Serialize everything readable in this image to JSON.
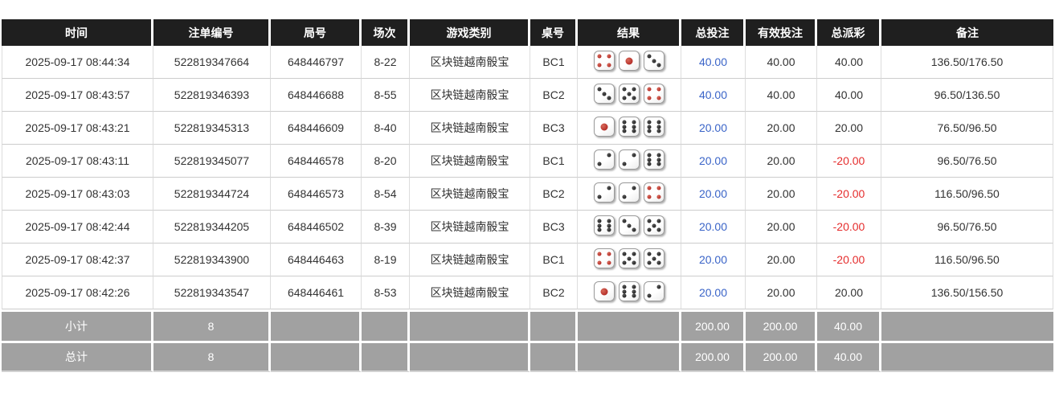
{
  "colors": {
    "header_bg": "#1f1f1f",
    "footer_bg": "#a1a1a1",
    "bet_link": "#3a64c8",
    "negative": "#e52d2d",
    "pip_black": "#111111",
    "pip_red": "#a51414"
  },
  "table": {
    "headers": [
      "时间",
      "注单编号",
      "局号",
      "场次",
      "游戏类别",
      "桌号",
      "结果",
      "总投注",
      "有效投注",
      "总派彩",
      "备注"
    ],
    "rows": [
      {
        "time": "2025-09-17 08:44:34",
        "bet_id": "522819347664",
        "round": "648446797",
        "session": "8-22",
        "game": "区块链越南骰宝",
        "table_no": "BC1",
        "dice": [
          4,
          1,
          3
        ],
        "total_bet": "40.00",
        "valid_bet": "40.00",
        "payout": "40.00",
        "payout_negative": false,
        "remark": "136.50/176.50"
      },
      {
        "time": "2025-09-17 08:43:57",
        "bet_id": "522819346393",
        "round": "648446688",
        "session": "8-55",
        "game": "区块链越南骰宝",
        "table_no": "BC2",
        "dice": [
          3,
          5,
          4
        ],
        "total_bet": "40.00",
        "valid_bet": "40.00",
        "payout": "40.00",
        "payout_negative": false,
        "remark": "96.50/136.50"
      },
      {
        "time": "2025-09-17 08:43:21",
        "bet_id": "522819345313",
        "round": "648446609",
        "session": "8-40",
        "game": "区块链越南骰宝",
        "table_no": "BC3",
        "dice": [
          1,
          6,
          6
        ],
        "total_bet": "20.00",
        "valid_bet": "20.00",
        "payout": "20.00",
        "payout_negative": false,
        "remark": "76.50/96.50"
      },
      {
        "time": "2025-09-17 08:43:11",
        "bet_id": "522819345077",
        "round": "648446578",
        "session": "8-20",
        "game": "区块链越南骰宝",
        "table_no": "BC1",
        "dice": [
          2,
          2,
          6
        ],
        "total_bet": "20.00",
        "valid_bet": "20.00",
        "payout": "-20.00",
        "payout_negative": true,
        "remark": "96.50/76.50"
      },
      {
        "time": "2025-09-17 08:43:03",
        "bet_id": "522819344724",
        "round": "648446573",
        "session": "8-54",
        "game": "区块链越南骰宝",
        "table_no": "BC2",
        "dice": [
          2,
          2,
          4
        ],
        "total_bet": "20.00",
        "valid_bet": "20.00",
        "payout": "-20.00",
        "payout_negative": true,
        "remark": "116.50/96.50"
      },
      {
        "time": "2025-09-17 08:42:44",
        "bet_id": "522819344205",
        "round": "648446502",
        "session": "8-39",
        "game": "区块链越南骰宝",
        "table_no": "BC3",
        "dice": [
          6,
          3,
          5
        ],
        "total_bet": "20.00",
        "valid_bet": "20.00",
        "payout": "-20.00",
        "payout_negative": true,
        "remark": "96.50/76.50"
      },
      {
        "time": "2025-09-17 08:42:37",
        "bet_id": "522819343900",
        "round": "648446463",
        "session": "8-19",
        "game": "区块链越南骰宝",
        "table_no": "BC1",
        "dice": [
          4,
          5,
          5
        ],
        "total_bet": "20.00",
        "valid_bet": "20.00",
        "payout": "-20.00",
        "payout_negative": true,
        "remark": "116.50/96.50"
      },
      {
        "time": "2025-09-17 08:42:26",
        "bet_id": "522819343547",
        "round": "648446461",
        "session": "8-53",
        "game": "区块链越南骰宝",
        "table_no": "BC2",
        "dice": [
          1,
          6,
          2
        ],
        "total_bet": "20.00",
        "valid_bet": "20.00",
        "payout": "20.00",
        "payout_negative": false,
        "remark": "136.50/156.50"
      }
    ],
    "footer": [
      {
        "label": "小计",
        "count": "8",
        "total_bet": "200.00",
        "valid_bet": "200.00",
        "payout": "40.00"
      },
      {
        "label": "总计",
        "count": "8",
        "total_bet": "200.00",
        "valid_bet": "200.00",
        "payout": "40.00"
      }
    ]
  }
}
